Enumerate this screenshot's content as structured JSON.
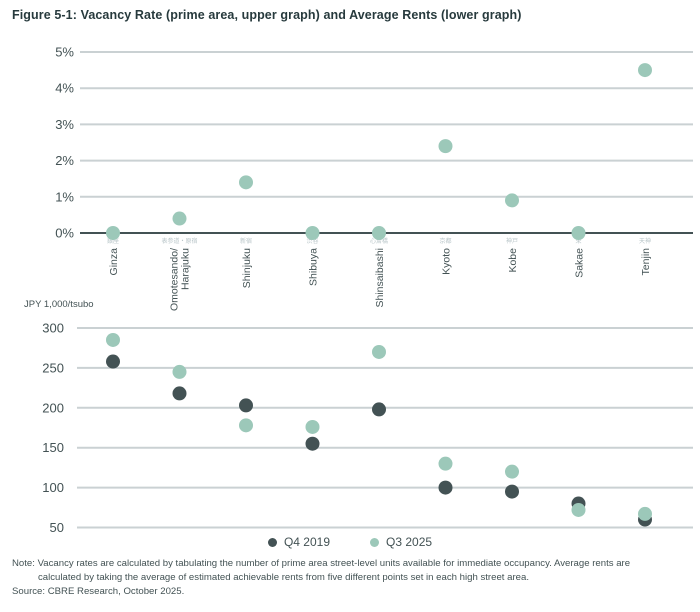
{
  "figure": {
    "title": "Figure 5-1: Vacancy Rate (prime area, upper graph) and Average Rents (lower graph)",
    "note_line1": "Note: Vacancy rates are calculated by tabulating the number of prime area street-level units available for immediate occupancy. Average rents are",
    "note_line2": "calculated by taking the average of estimated achievable rents from five different points set in each high street area.",
    "source": "Source: CBRE Research, October 2025."
  },
  "colors": {
    "title": "#273a3d",
    "text": "#435254",
    "grid": "#cad1d3",
    "axis": "#435254",
    "kanji_label": "#b9c6c9",
    "q4_2019": "#435254",
    "q3_2025": "#9cc8b9"
  },
  "legend": {
    "items": [
      {
        "label": "Q4 2019",
        "color": "#435254"
      },
      {
        "label": "Q3 2025",
        "color": "#9cc8b9"
      }
    ]
  },
  "chart_data": [
    {
      "type": "scatter",
      "title": "Vacancy Rate (prime area)",
      "categories": [
        "Ginza",
        "Omotesando/\nHarajuku",
        "Shinjuku",
        "Shibuya",
        "Shinsaibashi",
        "Kyoto",
        "Kobe",
        "Sakae",
        "Tenjin"
      ],
      "categories_ja": [
        "銀座",
        "表参道・原宿",
        "新宿",
        "渋谷",
        "心斎橋",
        "京都",
        "神戸",
        "栄",
        "天神"
      ],
      "series": [
        {
          "name": "Q3 2025",
          "color": "#9cc8b9",
          "values": [
            0,
            0.4,
            1.4,
            0,
            0,
            2.4,
            0.9,
            0,
            4.5
          ]
        }
      ],
      "xlabel": "",
      "ylabel": "",
      "ylim": [
        0,
        5
      ],
      "ytick_labels": [
        "0%",
        "1%",
        "2%",
        "3%",
        "4%",
        "5%"
      ],
      "grid": true,
      "legend_position": "shared-bottom"
    },
    {
      "type": "scatter",
      "title": "Average Rents",
      "categories": [
        "Ginza",
        "Omotesando/\nHarajuku",
        "Shinjuku",
        "Shibuya",
        "Shinsaibashi",
        "Kyoto",
        "Kobe",
        "Sakae",
        "Tenjin"
      ],
      "series": [
        {
          "name": "Q4 2019",
          "color": "#435254",
          "values": [
            258,
            218,
            203,
            155,
            198,
            100,
            95,
            80,
            60
          ]
        },
        {
          "name": "Q3 2025",
          "color": "#9cc8b9",
          "values": [
            285,
            245,
            178,
            176,
            270,
            130,
            120,
            72,
            67
          ]
        }
      ],
      "xlabel": "",
      "ylabel": "JPY 1,000/tsubo",
      "ylim": [
        50,
        300
      ],
      "ytick_labels": [
        "50",
        "100",
        "150",
        "200",
        "250",
        "300"
      ],
      "grid": true,
      "legend_position": "shared-bottom"
    }
  ]
}
